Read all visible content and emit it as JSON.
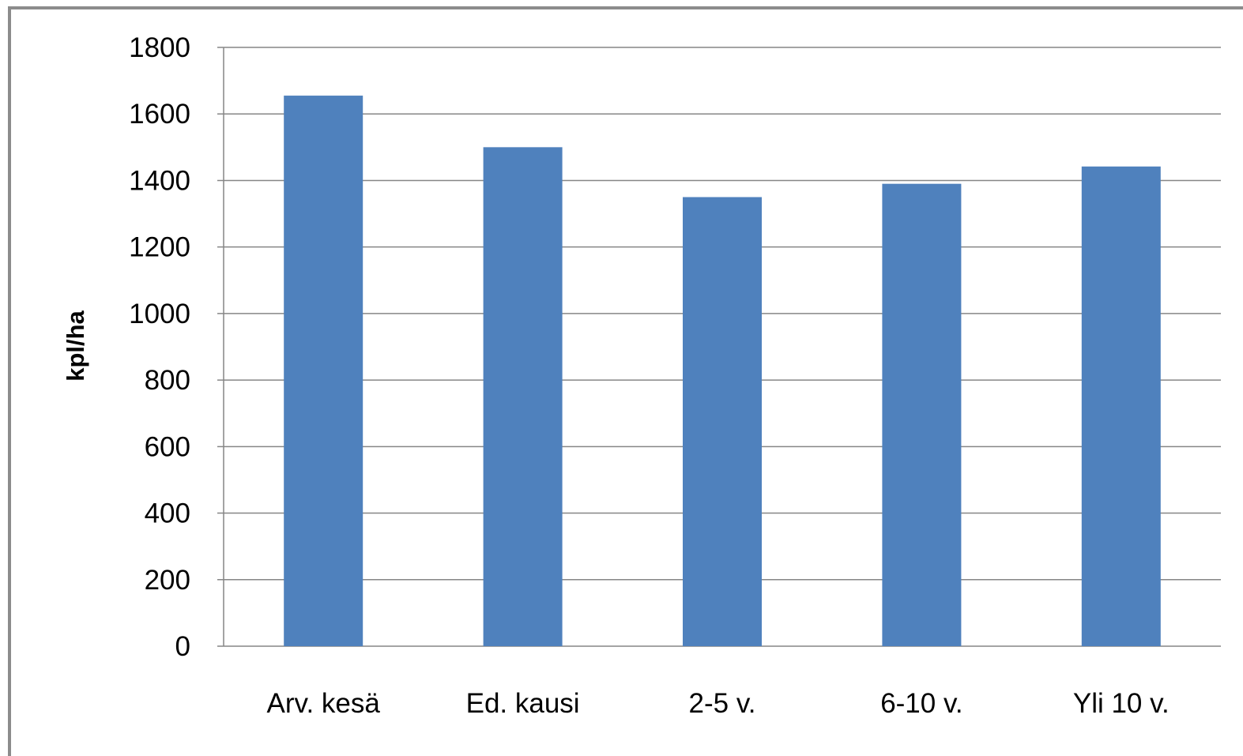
{
  "chart_data": {
    "type": "bar",
    "title": "",
    "xlabel": "",
    "ylabel": "kpl/ha",
    "categories": [
      "Arv. kesä",
      "Ed. kausi",
      "2-5 v.",
      "6-10 v.",
      "Yli 10 v."
    ],
    "values": [
      1655,
      1500,
      1350,
      1390,
      1442
    ],
    "ylim": [
      0,
      1800
    ],
    "yticks": [
      0,
      200,
      400,
      600,
      800,
      1000,
      1200,
      1400,
      1600,
      1800
    ],
    "ytick_labels": [
      "0",
      "200",
      "400",
      "600",
      "800",
      "1000",
      "1200",
      "1400",
      "1600",
      "1800"
    ],
    "grid": "horizontal",
    "legend": "none",
    "bar_color": "#4f81bd",
    "grid_color": "#868686",
    "frame_color": "#8c8c8c"
  }
}
